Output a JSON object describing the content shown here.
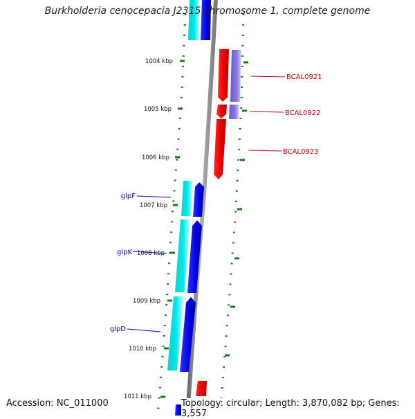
{
  "title": "Burkholderia cenocepacia J2315 chromosome 1, complete genome",
  "footer": {
    "accession": "Accession: NC_011000",
    "summary": "Topology: circular; Length: 3,870,082 bp; Genes: 3,557"
  },
  "ticks": [
    "1004 kbp",
    "1005 kbp",
    "1006 kbp",
    "1007 kbp",
    "1008 kbp",
    "1009 kbp",
    "1010 kbp",
    "1011 kbp"
  ],
  "genes": {
    "right": [
      "BCAL0921",
      "BCAL0922",
      "BCAL0923"
    ],
    "left": [
      "glpF",
      "glpK",
      "glpD"
    ]
  },
  "colors": {
    "forward": "#ff0000",
    "reverse": "#0000ee",
    "reverse_cds": "#00c8c8",
    "forward_cds": "#7060d0",
    "backbone": "#909090",
    "ticks": "#1a7a1a",
    "label_right": "#cc0000",
    "label_left": "#0000cc"
  }
}
